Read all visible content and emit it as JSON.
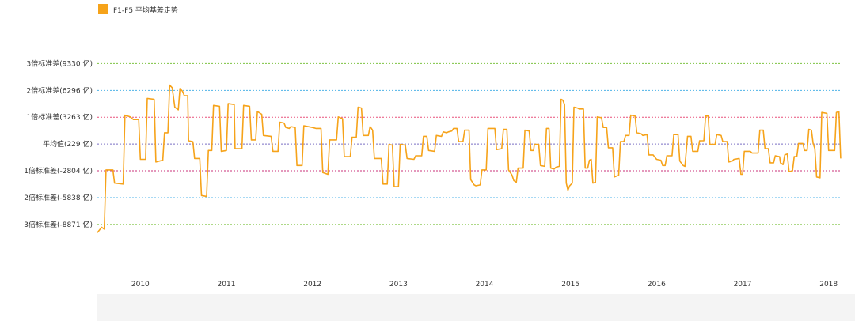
{
  "chart_data": {
    "type": "line",
    "title": "",
    "xlabel": "",
    "ylabel": "",
    "legend": {
      "placement": "top-left"
    },
    "series": [
      {
        "name": "F1-F5 平均基差走势",
        "color": "#F6A31A",
        "points": [
          [
            2009.5,
            -9800
          ],
          [
            2009.55,
            -9200
          ],
          [
            2009.58,
            -9400
          ],
          [
            2009.6,
            -2700
          ],
          [
            2009.68,
            -2700
          ],
          [
            2009.7,
            -4200
          ],
          [
            2009.8,
            -4300
          ],
          [
            2009.82,
            3500
          ],
          [
            2009.88,
            3300
          ],
          [
            2009.92,
            3000
          ],
          [
            2009.98,
            3000
          ],
          [
            2010.0,
            -1500
          ],
          [
            2010.06,
            -1500
          ],
          [
            2010.08,
            5400
          ],
          [
            2010.16,
            5300
          ],
          [
            2010.18,
            -1800
          ],
          [
            2010.26,
            -1600
          ],
          [
            2010.28,
            1500
          ],
          [
            2010.32,
            1500
          ],
          [
            2010.34,
            6900
          ],
          [
            2010.37,
            6600
          ],
          [
            2010.4,
            4400
          ],
          [
            2010.44,
            4100
          ],
          [
            2010.46,
            6500
          ],
          [
            2010.49,
            6200
          ],
          [
            2010.51,
            5700
          ],
          [
            2010.55,
            5700
          ],
          [
            2010.56,
            600
          ],
          [
            2010.61,
            500
          ],
          [
            2010.63,
            -1400
          ],
          [
            2010.69,
            -1400
          ],
          [
            2010.71,
            -5600
          ],
          [
            2010.77,
            -5700
          ],
          [
            2010.79,
            -500
          ],
          [
            2010.83,
            -500
          ],
          [
            2010.85,
            4600
          ],
          [
            2010.92,
            4500
          ],
          [
            2010.94,
            -600
          ],
          [
            2011.0,
            -500
          ],
          [
            2011.02,
            4800
          ],
          [
            2011.09,
            4700
          ],
          [
            2011.1,
            -300
          ],
          [
            2011.18,
            -300
          ],
          [
            2011.2,
            4600
          ],
          [
            2011.27,
            4500
          ],
          [
            2011.29,
            700
          ],
          [
            2011.34,
            700
          ],
          [
            2011.36,
            3900
          ],
          [
            2011.41,
            3600
          ],
          [
            2011.43,
            1200
          ],
          [
            2011.52,
            1100
          ],
          [
            2011.54,
            -600
          ],
          [
            2011.6,
            -600
          ],
          [
            2011.62,
            2700
          ],
          [
            2011.67,
            2600
          ],
          [
            2011.69,
            2100
          ],
          [
            2011.73,
            2000
          ],
          [
            2011.75,
            2200
          ],
          [
            2011.8,
            2100
          ],
          [
            2011.82,
            -2200
          ],
          [
            2011.88,
            -2200
          ],
          [
            2011.9,
            2300
          ],
          [
            2012.0,
            2100
          ],
          [
            2012.04,
            2000
          ],
          [
            2012.1,
            2000
          ],
          [
            2012.12,
            -3000
          ],
          [
            2012.18,
            -3200
          ],
          [
            2012.2,
            700
          ],
          [
            2012.28,
            700
          ],
          [
            2012.3,
            3300
          ],
          [
            2012.35,
            3100
          ],
          [
            2012.37,
            -1200
          ],
          [
            2012.44,
            -1200
          ],
          [
            2012.46,
            1000
          ],
          [
            2012.51,
            1000
          ],
          [
            2012.53,
            4400
          ],
          [
            2012.57,
            4300
          ],
          [
            2012.59,
            1200
          ],
          [
            2012.65,
            1200
          ],
          [
            2012.67,
            2200
          ],
          [
            2012.7,
            1800
          ],
          [
            2012.72,
            -1400
          ],
          [
            2012.8,
            -1400
          ],
          [
            2012.82,
            -4300
          ],
          [
            2012.87,
            -4300
          ],
          [
            2012.89,
            200
          ],
          [
            2012.93,
            100
          ],
          [
            2012.95,
            -4600
          ],
          [
            2013.0,
            -4600
          ],
          [
            2013.02,
            200
          ],
          [
            2013.08,
            100
          ],
          [
            2013.1,
            -1400
          ],
          [
            2013.18,
            -1500
          ],
          [
            2013.2,
            -1100
          ],
          [
            2013.27,
            -1100
          ],
          [
            2013.29,
            1100
          ],
          [
            2013.33,
            1100
          ],
          [
            2013.35,
            -500
          ],
          [
            2013.42,
            -600
          ],
          [
            2013.44,
            1200
          ],
          [
            2013.5,
            1100
          ],
          [
            2013.52,
            1600
          ],
          [
            2013.56,
            1500
          ],
          [
            2013.58,
            1600
          ],
          [
            2013.62,
            1700
          ],
          [
            2013.64,
            2000
          ],
          [
            2013.68,
            2000
          ],
          [
            2013.7,
            500
          ],
          [
            2013.75,
            500
          ],
          [
            2013.77,
            1800
          ],
          [
            2013.82,
            1800
          ],
          [
            2013.84,
            -3800
          ],
          [
            2013.88,
            -4400
          ],
          [
            2013.9,
            -4500
          ],
          [
            2013.95,
            -4400
          ],
          [
            2013.97,
            -2700
          ],
          [
            2014.02,
            -2700
          ],
          [
            2014.04,
            2000
          ],
          [
            2014.12,
            2000
          ],
          [
            2014.14,
            -400
          ],
          [
            2014.2,
            -300
          ],
          [
            2014.22,
            1900
          ],
          [
            2014.26,
            1900
          ],
          [
            2014.28,
            -2700
          ],
          [
            2014.32,
            -3300
          ],
          [
            2014.34,
            -3900
          ],
          [
            2014.37,
            -4100
          ],
          [
            2014.39,
            -2500
          ],
          [
            2014.45,
            -2500
          ],
          [
            2014.47,
            1800
          ],
          [
            2014.52,
            1700
          ],
          [
            2014.54,
            -500
          ],
          [
            2014.57,
            -500
          ],
          [
            2014.58,
            200
          ],
          [
            2014.63,
            200
          ],
          [
            2014.65,
            -2200
          ],
          [
            2014.7,
            -2300
          ],
          [
            2014.72,
            2000
          ],
          [
            2014.75,
            2000
          ],
          [
            2014.77,
            -2500
          ],
          [
            2014.81,
            -2600
          ],
          [
            2014.83,
            -2400
          ],
          [
            2014.87,
            -2300
          ],
          [
            2014.89,
            5300
          ],
          [
            2014.91,
            5200
          ],
          [
            2014.93,
            4700
          ],
          [
            2014.95,
            -4200
          ],
          [
            2014.97,
            -5000
          ],
          [
            2014.99,
            -4500
          ],
          [
            2015.02,
            -4200
          ],
          [
            2015.04,
            4400
          ],
          [
            2015.08,
            4300
          ],
          [
            2015.1,
            4200
          ],
          [
            2015.15,
            4200
          ],
          [
            2015.17,
            -2500
          ],
          [
            2015.2,
            -2500
          ],
          [
            2015.22,
            -1600
          ],
          [
            2015.24,
            -1500
          ],
          [
            2015.26,
            -4200
          ],
          [
            2015.29,
            -4100
          ],
          [
            2015.31,
            3300
          ],
          [
            2015.36,
            3200
          ],
          [
            2015.38,
            2100
          ],
          [
            2015.42,
            2100
          ],
          [
            2015.44,
            -200
          ],
          [
            2015.49,
            -200
          ],
          [
            2015.51,
            -3500
          ],
          [
            2015.56,
            -3300
          ],
          [
            2015.58,
            500
          ],
          [
            2015.62,
            500
          ],
          [
            2015.64,
            1200
          ],
          [
            2015.68,
            1200
          ],
          [
            2015.7,
            3500
          ],
          [
            2015.75,
            3400
          ],
          [
            2015.77,
            1500
          ],
          [
            2015.82,
            1400
          ],
          [
            2015.84,
            1200
          ],
          [
            2015.89,
            1300
          ],
          [
            2015.91,
            -1000
          ],
          [
            2015.96,
            -1000
          ],
          [
            2016.0,
            -1500
          ],
          [
            2016.05,
            -1600
          ],
          [
            2016.07,
            -2200
          ],
          [
            2016.1,
            -2200
          ],
          [
            2016.12,
            -1100
          ],
          [
            2016.18,
            -1100
          ],
          [
            2016.2,
            1300
          ],
          [
            2016.25,
            1300
          ],
          [
            2016.27,
            -1700
          ],
          [
            2016.31,
            -2200
          ],
          [
            2016.33,
            -2300
          ],
          [
            2016.36,
            1100
          ],
          [
            2016.4,
            1100
          ],
          [
            2016.42,
            -600
          ],
          [
            2016.48,
            -600
          ],
          [
            2016.5,
            600
          ],
          [
            2016.55,
            600
          ],
          [
            2016.57,
            3400
          ],
          [
            2016.6,
            3400
          ],
          [
            2016.62,
            200
          ],
          [
            2016.68,
            200
          ],
          [
            2016.7,
            1300
          ],
          [
            2016.75,
            1200
          ],
          [
            2016.77,
            500
          ],
          [
            2016.82,
            500
          ],
          [
            2016.84,
            -1800
          ],
          [
            2016.88,
            -1700
          ],
          [
            2016.9,
            -1500
          ],
          [
            2016.96,
            -1400
          ],
          [
            2016.98,
            -3200
          ],
          [
            2017.0,
            -3200
          ],
          [
            2017.02,
            -600
          ],
          [
            2017.09,
            -600
          ],
          [
            2017.11,
            -800
          ],
          [
            2017.18,
            -800
          ],
          [
            2017.2,
            1800
          ],
          [
            2017.24,
            1800
          ],
          [
            2017.26,
            -300
          ],
          [
            2017.3,
            -300
          ],
          [
            2017.32,
            -1900
          ],
          [
            2017.36,
            -1900
          ],
          [
            2017.38,
            -1100
          ],
          [
            2017.43,
            -1200
          ],
          [
            2017.44,
            -1900
          ],
          [
            2017.47,
            -2100
          ],
          [
            2017.49,
            -1000
          ],
          [
            2017.52,
            -900
          ],
          [
            2017.54,
            -2900
          ],
          [
            2017.58,
            -2800
          ],
          [
            2017.6,
            -1200
          ],
          [
            2017.63,
            -1200
          ],
          [
            2017.65,
            300
          ],
          [
            2017.7,
            300
          ],
          [
            2017.72,
            -500
          ],
          [
            2017.75,
            -500
          ],
          [
            2017.77,
            1900
          ],
          [
            2017.8,
            1800
          ],
          [
            2017.82,
            300
          ],
          [
            2017.84,
            -300
          ],
          [
            2017.86,
            -3500
          ],
          [
            2017.9,
            -3600
          ],
          [
            2017.92,
            3800
          ],
          [
            2017.98,
            3700
          ],
          [
            2018.0,
            -500
          ],
          [
            2018.07,
            -500
          ],
          [
            2018.09,
            3800
          ],
          [
            2018.12,
            3900
          ],
          [
            2018.14,
            -1400
          ]
        ]
      }
    ],
    "x_ticks": [
      {
        "value": 2010,
        "label": "2010"
      },
      {
        "value": 2011,
        "label": "2011"
      },
      {
        "value": 2012,
        "label": "2012"
      },
      {
        "value": 2013,
        "label": "2013"
      },
      {
        "value": 2014,
        "label": "2014"
      },
      {
        "value": 2015,
        "label": "2015"
      },
      {
        "value": 2016,
        "label": "2016"
      },
      {
        "value": 2017,
        "label": "2017"
      },
      {
        "value": 2018,
        "label": "2018"
      }
    ],
    "xlim": [
      2009.5,
      2018.15
    ],
    "ylim": [
      -13000,
      12500
    ],
    "reference_lines": [
      {
        "value": 9330,
        "label": "3倍标准差(9330 亿)",
        "color": "#7DC242"
      },
      {
        "value": 6296,
        "label": "2倍标准差(6296 亿)",
        "color": "#4FB3E8"
      },
      {
        "value": 3263,
        "label": "1倍标准差(3263 亿)",
        "color": "#E8507A"
      },
      {
        "value": 229,
        "label": "平均值(229 亿)",
        "color": "#7A6FC4"
      },
      {
        "value": -2804,
        "label": "1倍标准差(-2804 亿)",
        "color": "#C8327A"
      },
      {
        "value": -5838,
        "label": "2倍标准差(-5838 亿)",
        "color": "#4FB3E8"
      },
      {
        "value": -8871,
        "label": "3倍标准差(-8871 亿)",
        "color": "#7DC242"
      }
    ]
  }
}
